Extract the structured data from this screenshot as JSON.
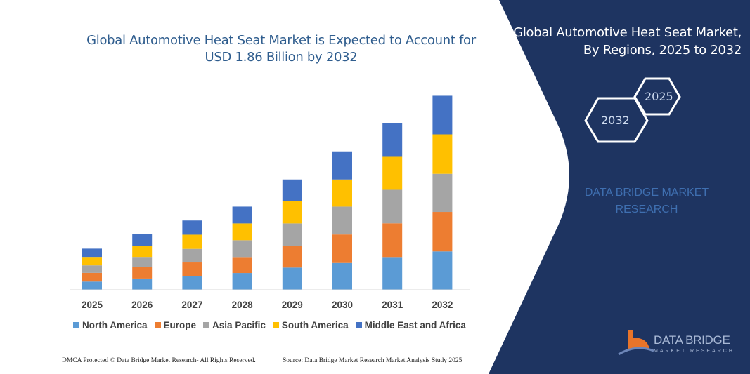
{
  "title": "Global Automotive Heat Seat Market is Expected to Account for USD 1.86 Billion by 2032",
  "side_panel": {
    "title_line1": "Global Automotive Heat Seat Market,",
    "title_line2": "By Regions, 2025 to 2032",
    "hex_start": "2025",
    "hex_end": "2032",
    "brand_line1": "DATA BRIDGE MARKET",
    "brand_line2": "RESEARCH",
    "logo_line1": "DATA BRIDGE",
    "logo_line2": "MARKET RESEARCH",
    "panel_color": "#1e3461"
  },
  "footer": {
    "left": "DMCA Protected © Data Bridge Market Research- All Rights Reserved.",
    "right": "Source: Data Bridge Market Research Market Analysis Study 2025"
  },
  "chart_data": {
    "type": "bar",
    "stacked": true,
    "title": "Global Automotive Heat Seat Market is Expected to Account for USD 1.86 Billion by 2032",
    "xlabel": "",
    "ylabel": "",
    "unit": "USD Billion (estimated)",
    "grid": false,
    "legend_position": "bottom",
    "categories": [
      "2025",
      "2026",
      "2027",
      "2028",
      "2029",
      "2030",
      "2031",
      "2032"
    ],
    "series": [
      {
        "name": "North America",
        "color": "#5b9bd5",
        "values": [
          0.079,
          0.108,
          0.132,
          0.161,
          0.213,
          0.257,
          0.314,
          0.368
        ]
      },
      {
        "name": "Europe",
        "color": "#ed7d31",
        "values": [
          0.083,
          0.108,
          0.13,
          0.153,
          0.21,
          0.273,
          0.323,
          0.378
        ]
      },
      {
        "name": "Asia Pacific",
        "color": "#a5a5a5",
        "values": [
          0.072,
          0.099,
          0.13,
          0.161,
          0.213,
          0.267,
          0.321,
          0.365
        ]
      },
      {
        "name": "South America",
        "color": "#ffc000",
        "values": [
          0.081,
          0.108,
          0.136,
          0.161,
          0.215,
          0.26,
          0.316,
          0.378
        ]
      },
      {
        "name": "Middle East and Africa",
        "color": "#4472c4",
        "values": [
          0.079,
          0.108,
          0.136,
          0.161,
          0.206,
          0.269,
          0.323,
          0.37
        ]
      }
    ]
  }
}
